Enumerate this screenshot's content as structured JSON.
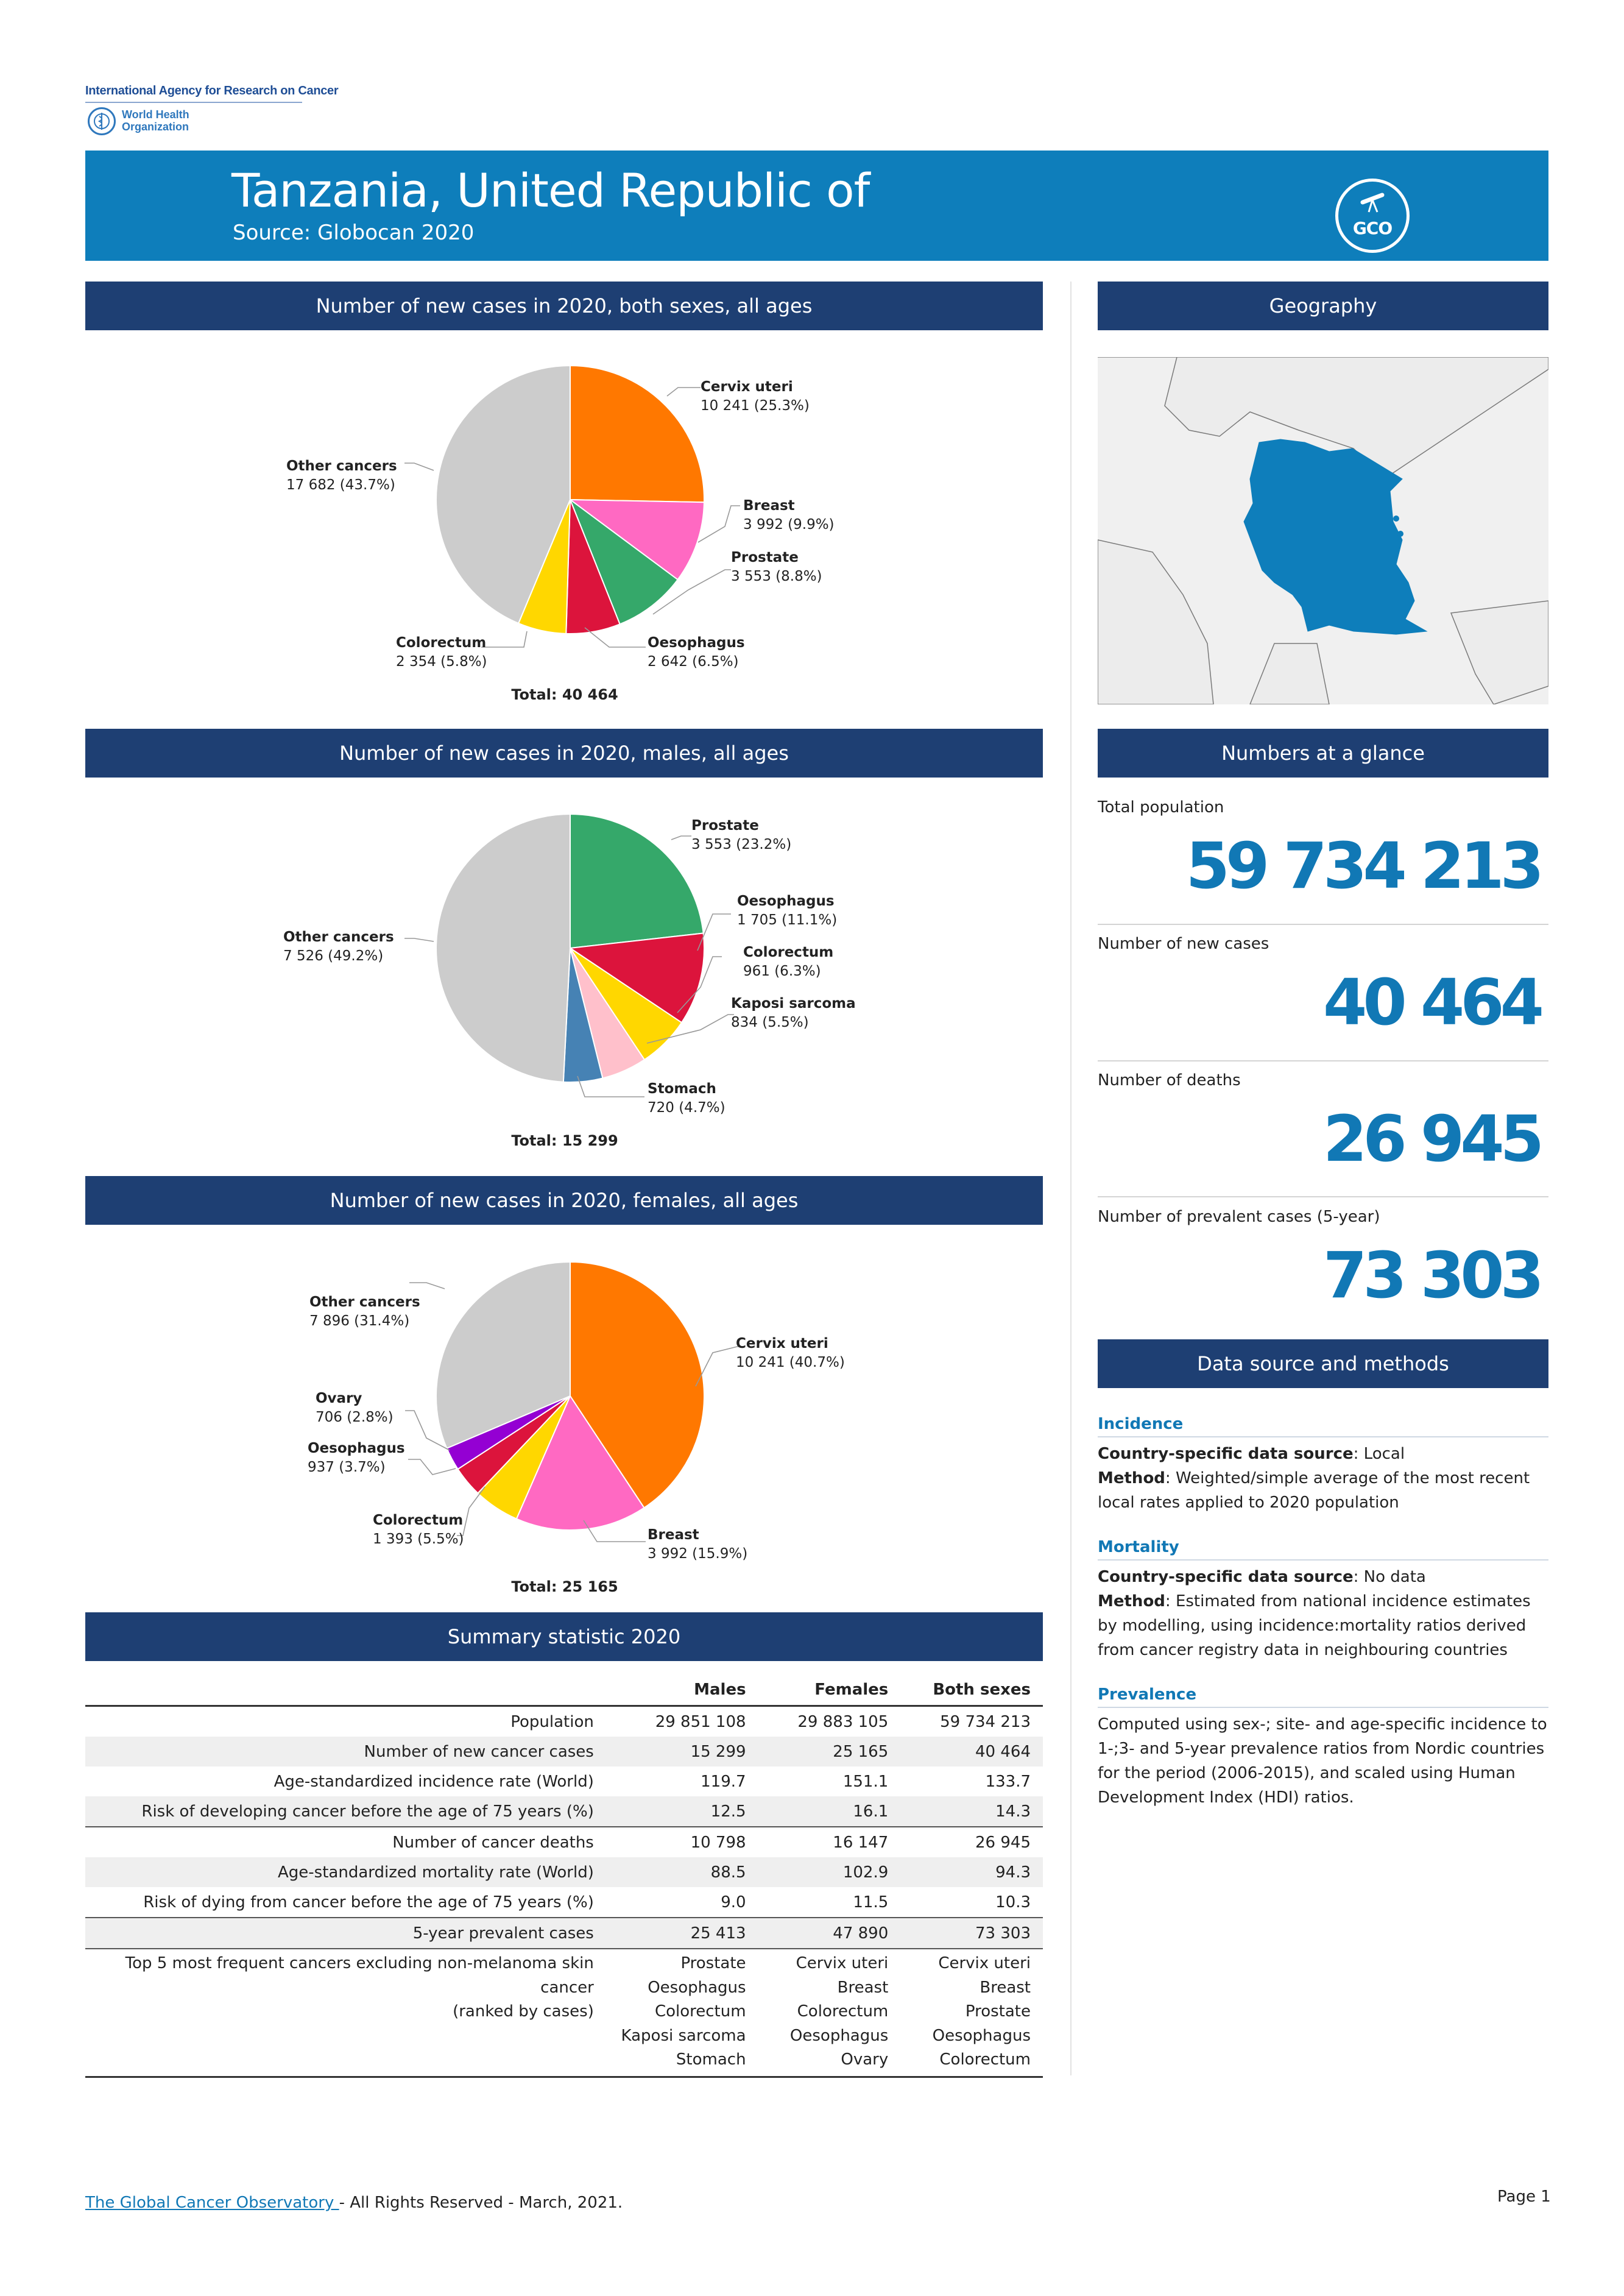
{
  "logos": {
    "iarc": "International Agency for Research on Cancer",
    "who_line1": "World Health",
    "who_line2": "Organization",
    "gco": "GCO"
  },
  "header": {
    "title": "Tanzania, United Republic of",
    "subtitle": "Source: Globocan 2020"
  },
  "sections": {
    "both": "Number of new cases in 2020, both sexes, all ages",
    "males": "Number of new cases in 2020, males, all ages",
    "females": "Number of new cases in 2020, females, all ages",
    "summary": "Summary statistic 2020",
    "geography": "Geography",
    "glance": "Numbers at a glance",
    "datasource": "Data source and methods"
  },
  "chart_data": [
    {
      "type": "pie",
      "total_label": "Total: 40 464",
      "slices": [
        {
          "name": "Cervix uteri",
          "value_label": "10 241 (25.3%)",
          "value": 10241,
          "color": "#ff7800"
        },
        {
          "name": "Breast",
          "value_label": "3 992 (9.9%)",
          "value": 3992,
          "color": "#ff69c2"
        },
        {
          "name": "Prostate",
          "value_label": "3 553 (8.8%)",
          "value": 3553,
          "color": "#35a86a"
        },
        {
          "name": "Oesophagus",
          "value_label": "2 642 (6.5%)",
          "value": 2642,
          "color": "#dc143c"
        },
        {
          "name": "Colorectum",
          "value_label": "2 354 (5.8%)",
          "value": 2354,
          "color": "#ffd700"
        },
        {
          "name": "Other cancers",
          "value_label": "17 682 (43.7%)",
          "value": 17682,
          "color": "#cccccc"
        }
      ]
    },
    {
      "type": "pie",
      "total_label": "Total: 15 299",
      "slices": [
        {
          "name": "Prostate",
          "value_label": "3 553 (23.2%)",
          "value": 3553,
          "color": "#35a86a"
        },
        {
          "name": "Oesophagus",
          "value_label": "1 705 (11.1%)",
          "value": 1705,
          "color": "#dc143c"
        },
        {
          "name": "Colorectum",
          "value_label": "961 (6.3%)",
          "value": 961,
          "color": "#ffd700"
        },
        {
          "name": "Kaposi sarcoma",
          "value_label": "834 (5.5%)",
          "value": 834,
          "color": "#ffc0cb"
        },
        {
          "name": "Stomach",
          "value_label": "720 (4.7%)",
          "value": 720,
          "color": "#4682b4"
        },
        {
          "name": "Other cancers",
          "value_label": "7 526 (49.2%)",
          "value": 7526,
          "color": "#cccccc"
        }
      ]
    },
    {
      "type": "pie",
      "total_label": "Total: 25 165",
      "slices": [
        {
          "name": "Cervix uteri",
          "value_label": "10 241 (40.7%)",
          "value": 10241,
          "color": "#ff7800"
        },
        {
          "name": "Breast",
          "value_label": "3 992 (15.9%)",
          "value": 3992,
          "color": "#ff69c2"
        },
        {
          "name": "Colorectum",
          "value_label": "1 393 (5.5%)",
          "value": 1393,
          "color": "#ffd700"
        },
        {
          "name": "Oesophagus",
          "value_label": "937 (3.7%)",
          "value": 937,
          "color": "#dc143c"
        },
        {
          "name": "Ovary",
          "value_label": "706 (2.8%)",
          "value": 706,
          "color": "#9400d3"
        },
        {
          "name": "Other cancers",
          "value_label": "7 896 (31.4%)",
          "value": 7896,
          "color": "#cccccc"
        }
      ]
    }
  ],
  "glance": [
    {
      "label": "Total population",
      "value": "59 734 213"
    },
    {
      "label": "Number of new cases",
      "value": "40 464"
    },
    {
      "label": "Number of deaths",
      "value": "26 945"
    },
    {
      "label": "Number of prevalent cases (5-year)",
      "value": "73 303"
    }
  ],
  "datasource": {
    "incidence": {
      "heading": "Incidence",
      "source_key": "Country-specific data source",
      "source_val": ": Local",
      "method_key": "Method",
      "method_val": ": Weighted/simple average of the most recent local rates applied to 2020 population"
    },
    "mortality": {
      "heading": "Mortality",
      "source_key": "Country-specific data source",
      "source_val": ": No data",
      "method_key": "Method",
      "method_val": ": Estimated from national incidence estimates by modelling, using incidence:mortality ratios derived from cancer registry data in neighbouring countries"
    },
    "prevalence": {
      "heading": "Prevalence",
      "text": "Computed using sex-; site- and age-specific incidence to 1-;3- and 5-year prevalence ratios from Nordic countries for the period (2006-2015), and scaled using Human Development Index (HDI) ratios."
    }
  },
  "summary": {
    "columns": [
      "Males",
      "Females",
      "Both sexes"
    ],
    "rows": [
      {
        "label": "Population",
        "values": [
          "29 851 108",
          "29 883 105",
          "59 734 213"
        ]
      },
      {
        "label": "Number of new cancer cases",
        "values": [
          "15 299",
          "25 165",
          "40 464"
        ]
      },
      {
        "label": "Age-standardized incidence rate (World)",
        "values": [
          "119.7",
          "151.1",
          "133.7"
        ]
      },
      {
        "label": "Risk of developing cancer before the age of 75 years (%)",
        "values": [
          "12.5",
          "16.1",
          "14.3"
        ]
      },
      {
        "label": "Number of cancer deaths",
        "values": [
          "10 798",
          "16 147",
          "26 945"
        ]
      },
      {
        "label": "Age-standardized mortality rate (World)",
        "values": [
          "88.5",
          "102.9",
          "94.3"
        ]
      },
      {
        "label": "Risk of dying from cancer before the age of 75 years (%)",
        "values": [
          "9.0",
          "11.5",
          "10.3"
        ]
      },
      {
        "label": "5-year prevalent cases",
        "values": [
          "25 413",
          "47 890",
          "73 303"
        ]
      }
    ],
    "top5": {
      "label_line1": "Top 5 most frequent cancers excluding non-melanoma skin cancer",
      "label_line2": "(ranked by cases)",
      "males": [
        "Prostate",
        "Oesophagus",
        "Colorectum",
        "Kaposi sarcoma",
        "Stomach"
      ],
      "females": [
        "Cervix uteri",
        "Breast",
        "Colorectum",
        "Oesophagus",
        "Ovary"
      ],
      "both": [
        "Cervix uteri",
        "Breast",
        "Prostate",
        "Oesophagus",
        "Colorectum"
      ]
    }
  },
  "footer": {
    "link": "The Global Cancer Observatory ",
    "rest": " - All Rights Reserved - March, 2021.",
    "page": "Page 1"
  }
}
